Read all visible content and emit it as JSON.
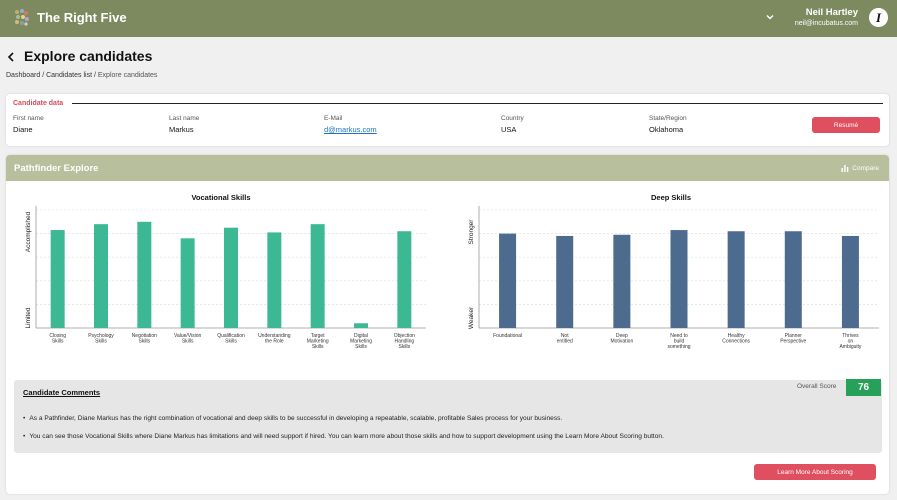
{
  "app": {
    "brand": "The Right Five"
  },
  "user": {
    "name": "Neil Hartley",
    "email": "neil@incubatus.com"
  },
  "page": {
    "title": "Explore candidates",
    "breadcrumb": [
      "Dashboard",
      "Candidates list",
      "Explore candidates"
    ],
    "breadcrumb_sep": "/"
  },
  "candidate": {
    "section_title": "Candidate data",
    "fields": [
      {
        "label": "First name",
        "value": "Diane"
      },
      {
        "label": "Last name",
        "value": "Markus"
      },
      {
        "label": "E-Mail",
        "value": "d@markus.com"
      },
      {
        "label": "Country",
        "value": "USA"
      },
      {
        "label": "State/Region",
        "value": "Oklahoma"
      }
    ],
    "resume_label": "Resumé"
  },
  "pathfinder": {
    "title": "Pathfinder Explore",
    "compare_label": "Compare"
  },
  "chart_data": [
    {
      "type": "bar",
      "title": "Vocational Skills",
      "ylabel_top": "Accomplished",
      "ylabel_bottom": "Limited",
      "ylim": [
        0,
        100
      ],
      "color": "#3db894",
      "categories": [
        "Closing Skills",
        "Psychology Skills",
        "Negotiation Skills",
        "Value/Vision Skills",
        "Qualification Skills",
        "Understanding the Role",
        "Target Marketing Skills",
        "Digital Marketing Skills",
        "Objection Handling Skills"
      ],
      "values": [
        83,
        88,
        90,
        76,
        85,
        81,
        88,
        4,
        82
      ]
    },
    {
      "type": "bar",
      "title": "Deep Skills",
      "ylabel_top": "Stronger",
      "ylabel_bottom": "Weaker",
      "ylim": [
        0,
        100
      ],
      "color": "#4d6b8e",
      "categories": [
        "Foundational",
        "Not entitled",
        "Deep Motivation",
        "Need to build something",
        "Healthy Connections",
        "Planner Perspective",
        "Thrives on Ambiguity"
      ],
      "values": [
        80,
        78,
        79,
        83,
        82,
        82,
        78
      ]
    }
  ],
  "comments": {
    "title": "Candidate Comments",
    "score_label": "Overall Score",
    "score": "76",
    "bullets": [
      "As a Pathfinder, Diane Markus has the right combination of vocational and deep skills to be successful in developing a repeatable, scalable, profitable Sales process for your business.",
      "You can see those Vocational Skills where Diane Markus has limitations and will need support if hired. You can learn more about those skills and how to support development using the Learn More About Scoring button."
    ]
  },
  "learn_more_label": "Learn More About Scoring",
  "colors": {
    "topbar": "#7d8a5f",
    "header": "#b7bf9c",
    "accent": "#e04f5f",
    "score": "#27a05a"
  }
}
